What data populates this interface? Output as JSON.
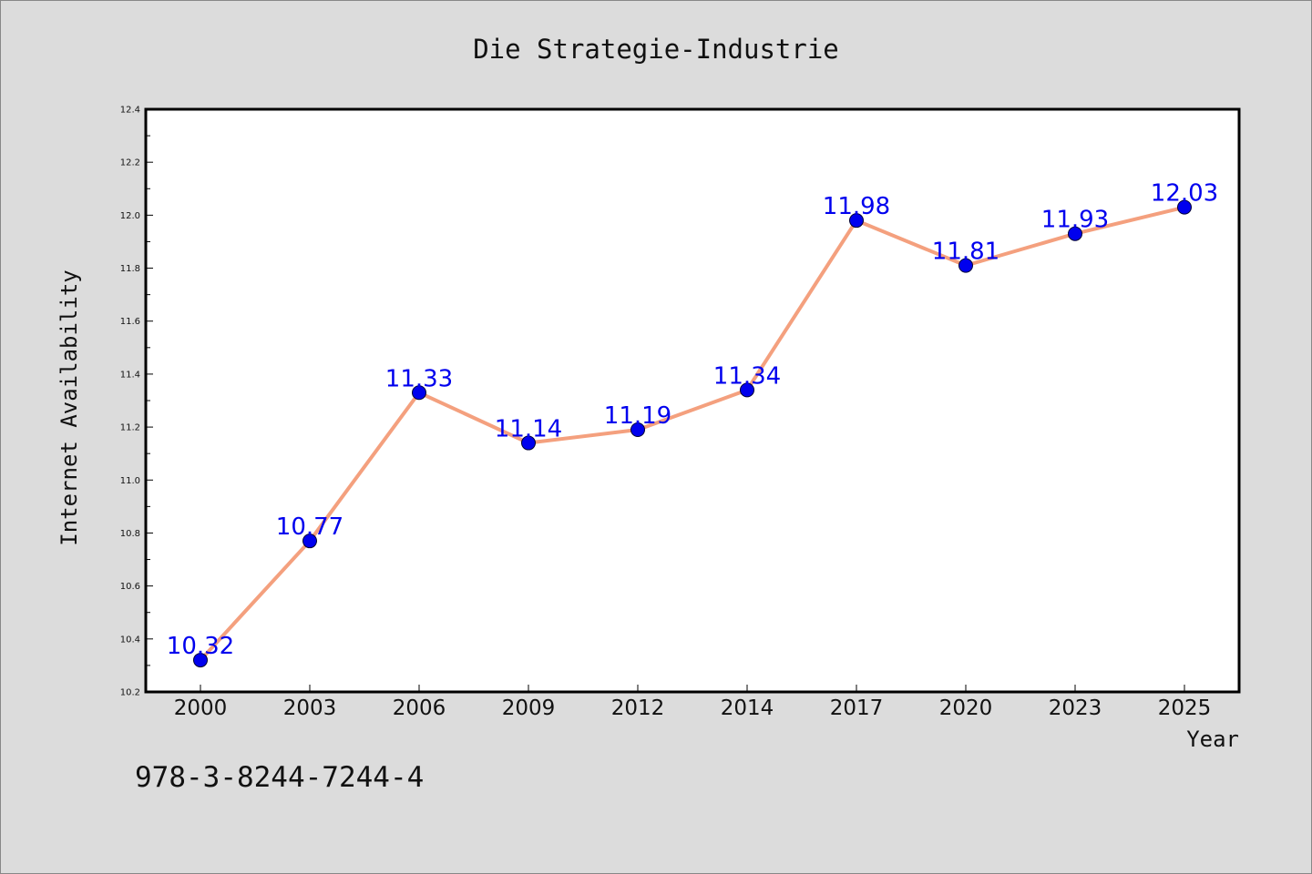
{
  "chart_data": {
    "type": "line",
    "title": "Die Strategie-Industrie",
    "xlabel": "Year",
    "ylabel": "Internet Availability",
    "categories": [
      "2000",
      "2003",
      "2006",
      "2009",
      "2012",
      "2014",
      "2017",
      "2020",
      "2023",
      "2025"
    ],
    "series": [
      {
        "values": [
          10.32,
          10.77,
          11.33,
          11.14,
          11.19,
          11.34,
          11.98,
          11.81,
          11.93,
          12.03
        ],
        "labels": [
          "10.32",
          "10.77",
          "11.33",
          "11.14",
          "11.19",
          "11.34",
          "11.98",
          "11.81",
          "11.93",
          "12.03"
        ],
        "line_color": "#f4a07e",
        "marker_color": "#0000ee",
        "label_color": "#0000ee"
      }
    ],
    "ylim": [
      10.2,
      12.4
    ],
    "y_ticks": [
      "10.2",
      "10.4",
      "10.6",
      "10.8",
      "11.0",
      "11.2",
      "11.4",
      "11.6",
      "11.8",
      "12.0",
      "12.2",
      "12.4"
    ],
    "grid": false,
    "legend": "none"
  },
  "footer": {
    "isbn": "978-3-8244-7244-4"
  },
  "colors": {
    "background": "#dcdcdc",
    "plot_background": "#ffffff",
    "axis": "#000000"
  }
}
